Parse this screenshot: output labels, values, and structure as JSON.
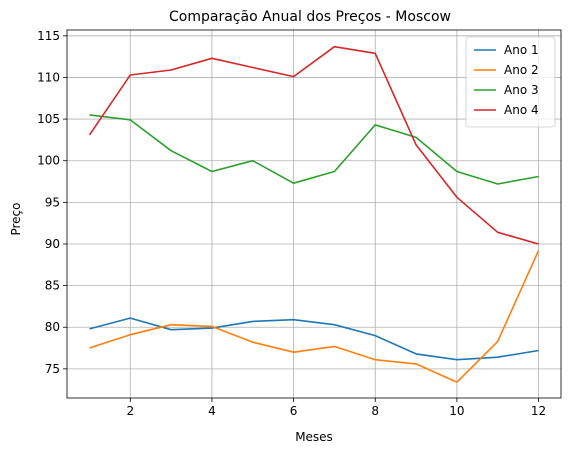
{
  "chart_data": {
    "type": "line",
    "title": "Comparação Anual dos Preços - Moscow",
    "xlabel": "Meses",
    "ylabel": "Preço",
    "x": [
      1,
      2,
      3,
      4,
      5,
      6,
      7,
      8,
      9,
      10,
      11,
      12
    ],
    "xlim": [
      0.45,
      12.55
    ],
    "ylim": [
      71.5,
      115.7
    ],
    "xticks": [
      2,
      4,
      6,
      8,
      10,
      12
    ],
    "xtick_labels": [
      "2",
      "4",
      "6",
      "8",
      "10",
      "12"
    ],
    "yticks": [
      75,
      80,
      85,
      90,
      95,
      100,
      105,
      110,
      115
    ],
    "ytick_labels": [
      "75",
      "80",
      "85",
      "90",
      "95",
      "100",
      "105",
      "110",
      "115"
    ],
    "grid": true,
    "legend_position": "top-right",
    "series": [
      {
        "name": "Ano 1",
        "color": "#1f77b4",
        "values": [
          79.8,
          81.1,
          79.7,
          79.9,
          80.7,
          80.9,
          80.3,
          79.0,
          76.8,
          76.1,
          76.4,
          77.2
        ]
      },
      {
        "name": "Ano 2",
        "color": "#ff7f0e",
        "values": [
          77.5,
          79.1,
          80.3,
          80.1,
          78.2,
          77.0,
          77.7,
          76.1,
          75.6,
          73.4,
          78.3,
          89.2
        ]
      },
      {
        "name": "Ano 3",
        "color": "#2ca02c",
        "values": [
          105.5,
          104.9,
          101.2,
          98.7,
          100.0,
          97.3,
          98.7,
          104.3,
          102.8,
          98.7,
          97.2,
          98.1
        ]
      },
      {
        "name": "Ano 4",
        "color": "#d62728",
        "values": [
          103.1,
          110.3,
          110.9,
          112.3,
          111.2,
          110.1,
          113.7,
          112.9,
          101.9,
          95.6,
          91.4,
          90.0
        ]
      }
    ]
  }
}
